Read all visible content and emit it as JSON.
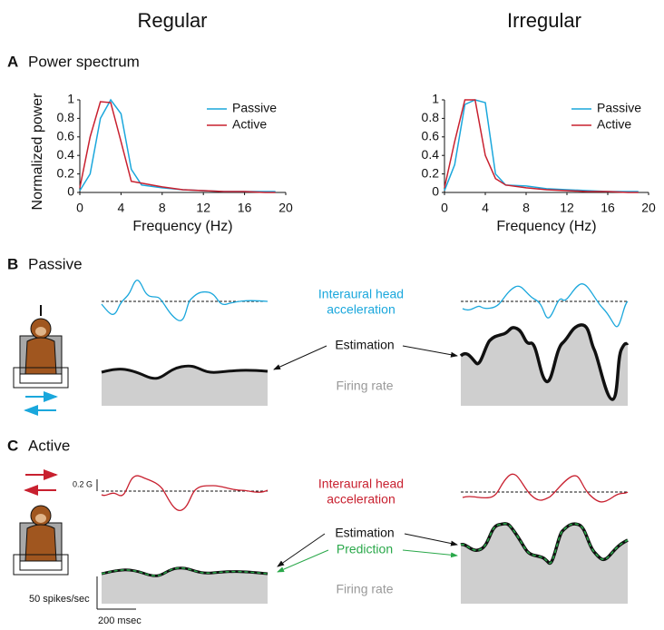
{
  "figure": {
    "columns": [
      "Regular",
      "Irregular"
    ],
    "panels": [
      {
        "letter": "A",
        "title": "Power spectrum"
      },
      {
        "letter": "B",
        "title": "Passive"
      },
      {
        "letter": "C",
        "title": "Active"
      }
    ],
    "passive": {
      "acceleration": [
        "Interaural head",
        "acceleration"
      ],
      "estimation": "Estimation",
      "firing_rate": "Firing rate"
    },
    "active": {
      "acceleration": [
        "Interaural head",
        "acceleration"
      ],
      "estimation": "Estimation",
      "prediction": "Prediction",
      "firing_rate": "Firing rate",
      "scale_acceleration": "0.2 G",
      "scale_rate": "50 spikes/sec",
      "scale_time": "200 msec"
    }
  },
  "chart_data": [
    {
      "type": "line",
      "ylabel": "Normalized power",
      "xlabel": "Frequency (Hz)",
      "x": [
        0,
        1,
        2,
        3,
        4,
        5,
        6,
        8,
        10,
        12,
        14,
        16,
        18,
        19
      ],
      "xlim": [
        0,
        20
      ],
      "ylim": [
        0,
        1
      ],
      "xticks": [
        0,
        4,
        8,
        12,
        16,
        20
      ],
      "yticks": [
        0,
        0.2,
        0.4,
        0.6,
        0.8,
        1
      ],
      "series": [
        {
          "name": "Passive",
          "color": "#1aa7dc",
          "values": [
            0.02,
            0.2,
            0.8,
            1.0,
            0.85,
            0.25,
            0.08,
            0.05,
            0.03,
            0.02,
            0.01,
            0.01,
            0.01,
            0.01
          ]
        },
        {
          "name": "Active",
          "color": "#c8202f",
          "values": [
            0.05,
            0.6,
            0.98,
            0.97,
            0.55,
            0.12,
            0.1,
            0.06,
            0.03,
            0.02,
            0.01,
            0.01,
            0,
            0
          ]
        }
      ]
    },
    {
      "type": "line",
      "xlabel": "Frequency (Hz)",
      "x": [
        0,
        1,
        2,
        3,
        4,
        5,
        6,
        8,
        10,
        12,
        14,
        16,
        18,
        19
      ],
      "xlim": [
        0,
        20
      ],
      "ylim": [
        0,
        1
      ],
      "xticks": [
        0,
        4,
        8,
        12,
        16,
        20
      ],
      "yticks": [
        0,
        0.2,
        0.4,
        0.6,
        0.8,
        1
      ],
      "series": [
        {
          "name": "Passive",
          "color": "#1aa7dc",
          "values": [
            0.02,
            0.3,
            0.95,
            1.0,
            0.97,
            0.2,
            0.08,
            0.07,
            0.04,
            0.03,
            0.02,
            0.01,
            0.01,
            0.01
          ]
        },
        {
          "name": "Active",
          "color": "#c8202f",
          "values": [
            0.05,
            0.55,
            1.0,
            1.0,
            0.4,
            0.15,
            0.08,
            0.05,
            0.03,
            0.02,
            0.01,
            0.01,
            0,
            0
          ]
        }
      ]
    }
  ]
}
